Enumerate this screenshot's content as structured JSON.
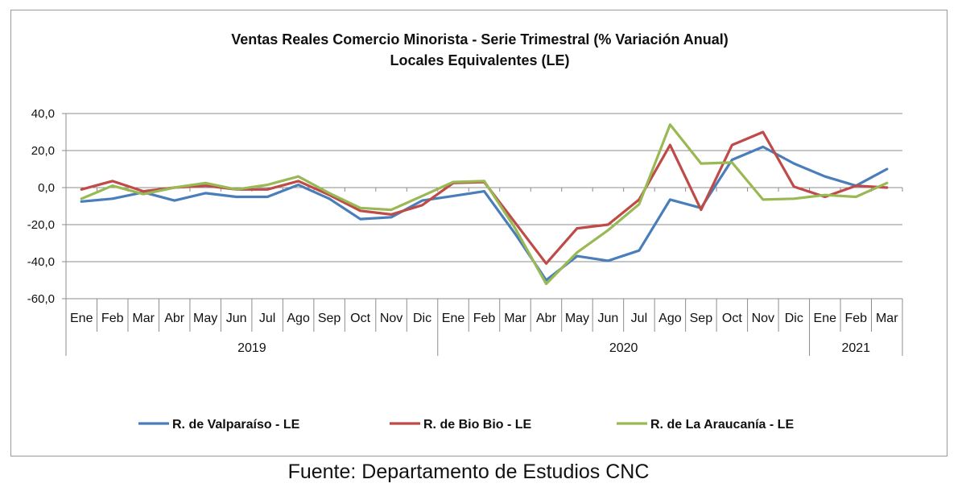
{
  "chart_data": {
    "type": "line",
    "title": "Ventas Reales Comercio Minorista - Serie Trimestral (% Variación Anual)",
    "subtitle": "Locales Equivalentes (LE)",
    "categories": [
      "Ene",
      "Feb",
      "Mar",
      "Abr",
      "May",
      "Jun",
      "Jul",
      "Ago",
      "Sep",
      "Oct",
      "Nov",
      "Dic",
      "Ene",
      "Feb",
      "Mar",
      "Abr",
      "May",
      "Jun",
      "Jul",
      "Ago",
      "Sep",
      "Oct",
      "Nov",
      "Dic",
      "Ene",
      "Feb",
      "Mar"
    ],
    "year_groups": [
      {
        "label": "2019",
        "count": 12
      },
      {
        "label": "2020",
        "count": 12
      },
      {
        "label": "2021",
        "count": 3
      }
    ],
    "ylim": [
      -60,
      40
    ],
    "yticks": [
      40,
      20,
      0,
      -20,
      -40,
      -60
    ],
    "ytick_labels": [
      "40,0",
      "20,0",
      "0,0",
      "-20,0",
      "-40,0",
      "-60,0"
    ],
    "grid": true,
    "legend_position": "bottom",
    "series": [
      {
        "name": "R. de Valparaíso - LE",
        "color": "#4a7ebb",
        "values": [
          -7.5,
          -6,
          -2.5,
          -7,
          -3,
          -5,
          -5,
          1.5,
          -6,
          -17,
          -16,
          -7,
          -4.5,
          -2,
          -25,
          -50,
          -37,
          -39.5,
          -34,
          -6.5,
          -11,
          15,
          22,
          13,
          6,
          1,
          10
        ]
      },
      {
        "name": "R. de Bio Bio - LE",
        "color": "#be4b48",
        "values": [
          -1,
          3.5,
          -2,
          0,
          1,
          -1,
          -1,
          3.5,
          -4,
          -12.5,
          -14.5,
          -9.5,
          2.5,
          3,
          -19,
          -41,
          -22,
          -20,
          -6.5,
          23,
          -12,
          23,
          30,
          0.5,
          -5,
          1,
          0
        ]
      },
      {
        "name": "R. de La Araucanía - LE",
        "color": "#98b954",
        "values": [
          -6,
          1,
          -3.5,
          0,
          2.5,
          -1,
          1.5,
          6,
          -3,
          -11,
          -12,
          -4.5,
          3,
          3.5,
          -22,
          -52,
          -35,
          -23,
          -9,
          34,
          13,
          13.5,
          -6.5,
          -6,
          -4,
          -5,
          2.5
        ]
      }
    ]
  },
  "source": "Fuente: Departamento de Estudios CNC"
}
